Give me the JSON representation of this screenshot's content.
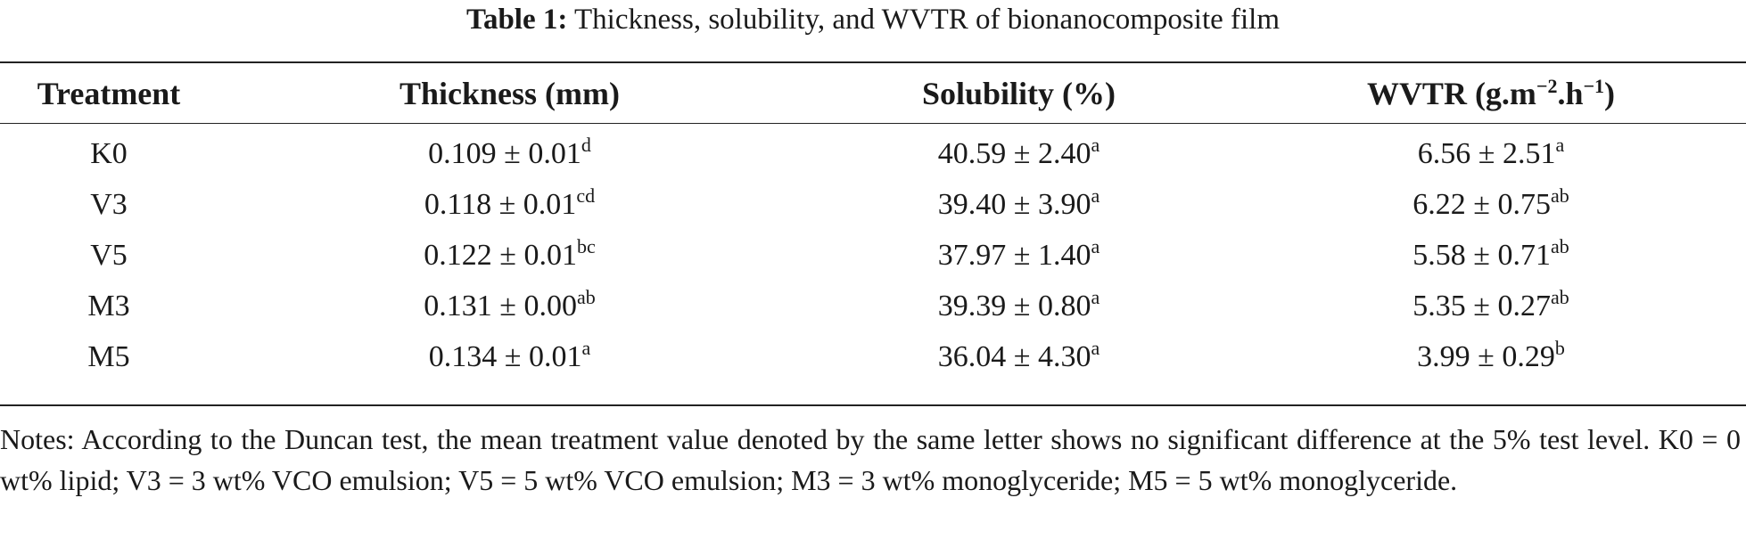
{
  "caption": {
    "label": "Table 1:",
    "text": "Thickness, solubility, and WVTR of bionanocomposite film"
  },
  "table": {
    "headers": {
      "treatment": "Treatment",
      "thickness": "Thickness (mm)",
      "solubility": "Solubility (%)",
      "wvtr_base": "WVTR (g.m",
      "wvtr_exp1": "−2",
      "wvtr_mid": ".h",
      "wvtr_exp2": "−1",
      "wvtr_end": ")"
    },
    "rows": [
      {
        "treatment": "K0",
        "thickness": "0.109 ± 0.01",
        "thickness_sig": "d",
        "solubility": "40.59 ± 2.40",
        "solubility_sig": "a",
        "wvtr": "6.56 ± 2.51",
        "wvtr_sig": "a"
      },
      {
        "treatment": "V3",
        "thickness": "0.118 ± 0.01",
        "thickness_sig": "cd",
        "solubility": "39.40 ± 3.90",
        "solubility_sig": "a",
        "wvtr": "6.22 ± 0.75",
        "wvtr_sig": "ab"
      },
      {
        "treatment": "V5",
        "thickness": "0.122 ± 0.01",
        "thickness_sig": "bc",
        "solubility": "37.97 ± 1.40",
        "solubility_sig": "a",
        "wvtr": "5.58 ± 0.71",
        "wvtr_sig": "ab"
      },
      {
        "treatment": "M3",
        "thickness": "0.131 ± 0.00",
        "thickness_sig": "ab",
        "solubility": "39.39 ± 0.80",
        "solubility_sig": "a",
        "wvtr": "5.35 ± 0.27",
        "wvtr_sig": "ab"
      },
      {
        "treatment": "M5",
        "thickness": "0.134 ± 0.01",
        "thickness_sig": "a",
        "solubility": "36.04 ± 4.30",
        "solubility_sig": "a",
        "wvtr": "3.99 ± 0.29",
        "wvtr_sig": "b"
      }
    ]
  },
  "notes": "Notes: According to the Duncan test, the mean treatment value denoted by the same letter shows no significant difference at the 5% test level. K0 = 0 wt% lipid; V3 = 3 wt% VCO emulsion; V5 = 5 wt% VCO emulsion; M3 = 3 wt% monoglyceride; M5 = 5 wt% monoglyceride."
}
